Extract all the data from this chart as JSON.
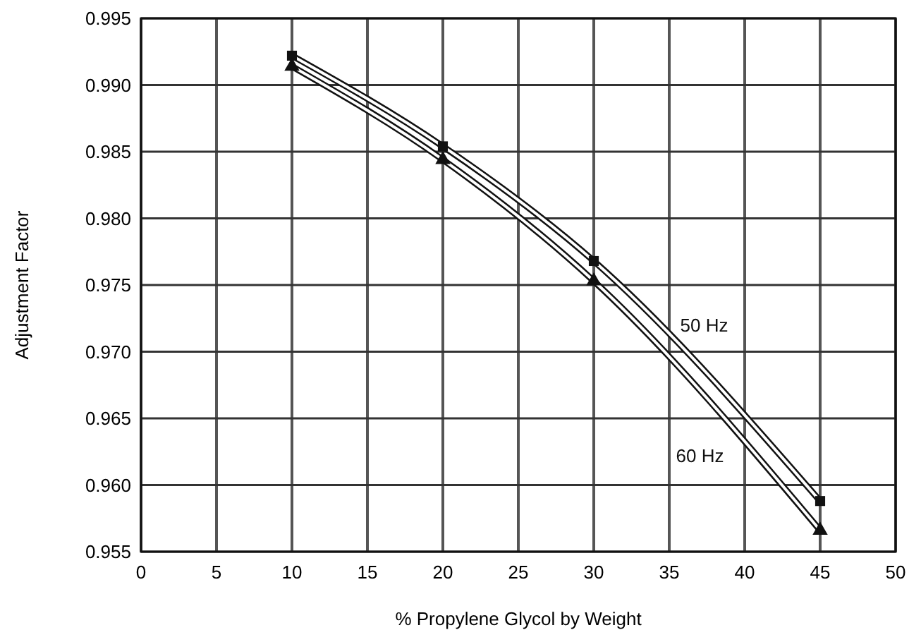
{
  "chart_data": {
    "type": "line",
    "xlabel": "% Propylene Glycol by Weight",
    "ylabel": "Adjustment Factor",
    "x": [
      10,
      20,
      30,
      45
    ],
    "series": [
      {
        "name": "50 Hz",
        "color": "#111111",
        "values": [
          0.9922,
          0.9854,
          0.9768,
          0.9588
        ],
        "marker": "square"
      },
      {
        "name": "60 Hz",
        "color": "#111111",
        "values": [
          0.9914,
          0.9844,
          0.9753,
          0.9566
        ],
        "marker": "triangle"
      }
    ],
    "xlim": [
      0,
      50
    ],
    "xticks": [
      0,
      5,
      10,
      15,
      20,
      25,
      30,
      35,
      40,
      45,
      50
    ],
    "ylim": [
      0.955,
      0.995
    ],
    "yticks": [
      {
        "value": 0.955,
        "label": "0.955"
      },
      {
        "value": 0.96,
        "label": "0.960"
      },
      {
        "value": 0.965,
        "label": "0.965"
      },
      {
        "value": 0.97,
        "label": "0.970"
      },
      {
        "value": 0.975,
        "label": "0.975"
      },
      {
        "value": 0.98,
        "label": "0.980"
      },
      {
        "value": 0.985,
        "label": "0.985"
      },
      {
        "value": 0.99,
        "label": "0.990"
      },
      {
        "value": 0.995,
        "label": "0.995"
      }
    ],
    "grid": true,
    "line_style": "solid"
  }
}
